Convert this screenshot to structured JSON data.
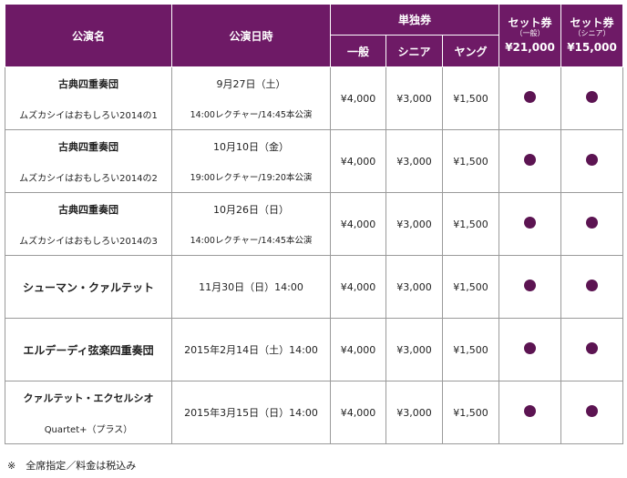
{
  "header": {
    "col_name": "公演名",
    "col_date": "公演日時",
    "single_group": "単独券",
    "single_general": "一般",
    "single_senior": "シニア",
    "single_young": "ヤング",
    "set_general_title": "セット券",
    "set_general_sub": "（一般）",
    "set_general_price": "¥21,000",
    "set_senior_title": "セット券",
    "set_senior_sub": "（シニア）",
    "set_senior_price": "¥15,000"
  },
  "rows": [
    {
      "name": "古典四重奏団",
      "subtitle": "ムズカシイはおもしろい2014の1",
      "date": "9月27日（土）",
      "time": "14:00レクチャー/14:45本公演",
      "general": "¥4,000",
      "senior": "¥3,000",
      "young": "¥1,500"
    },
    {
      "name": "古典四重奏団",
      "subtitle": "ムズカシイはおもしろい2014の2",
      "date": "10月10日（金）",
      "time": "19:00レクチャー/19:20本公演",
      "general": "¥4,000",
      "senior": "¥3,000",
      "young": "¥1,500"
    },
    {
      "name": "古典四重奏団",
      "subtitle": "ムズカシイはおもしろい2014の3",
      "date": "10月26日（日）",
      "time": "14:00レクチャー/14:45本公演",
      "general": "¥4,000",
      "senior": "¥3,000",
      "young": "¥1,500"
    },
    {
      "name": "シューマン・クァルテット",
      "date": "11月30日（日）14:00",
      "general": "¥4,000",
      "senior": "¥3,000",
      "young": "¥1,500"
    },
    {
      "name": "エルデーディ弦楽四重奏団",
      "date": "2015年2月14日（土）14:00",
      "general": "¥4,000",
      "senior": "¥3,000",
      "young": "¥1,500"
    },
    {
      "name": "クァルテット・エクセルシオ",
      "subtitle": "Quartet+（プラス）",
      "date": "2015年3月15日（日）14:00",
      "general": "¥4,000",
      "senior": "¥3,000",
      "young": "¥1,500"
    }
  ],
  "note": "※　全席指定／料金は税込み",
  "colors": {
    "header_bg": "#6e1a66",
    "dot": "#5c1452",
    "border": "#9a9a9a"
  },
  "icons": {
    "set_available": "filled-circle-icon"
  }
}
